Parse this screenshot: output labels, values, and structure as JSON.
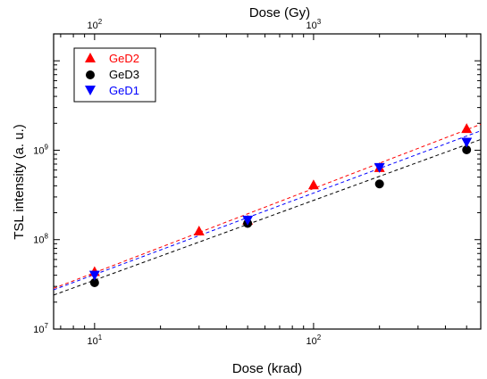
{
  "chart_data": {
    "type": "scatter",
    "x_scale": "log",
    "y_scale": "log",
    "xlabel": "Dose (krad)",
    "ylabel": "TSL intensity (a. u.)",
    "x2label": "Dose (Gy)",
    "xlim": [
      6.5,
      580
    ],
    "ylim": [
      10000000,
      20000000000
    ],
    "x2_factor": 10,
    "x_ticks": [
      {
        "value": 10,
        "base": "10",
        "exp": "1"
      },
      {
        "value": 100,
        "base": "10",
        "exp": "2"
      }
    ],
    "x2_ticks": [
      {
        "value": 100,
        "base": "10",
        "exp": "2"
      },
      {
        "value": 1000,
        "base": "10",
        "exp": "3"
      }
    ],
    "y_ticks": [
      {
        "value": 10000000,
        "base": "10",
        "exp": "7"
      },
      {
        "value": 100000000,
        "base": "10",
        "exp": "8"
      },
      {
        "value": 1000000000,
        "base": "10",
        "exp": "9"
      }
    ],
    "legend_position": "top-left",
    "series": [
      {
        "name": "GeD2",
        "color": "#ff0000",
        "marker": "triangle-up",
        "x": [
          10,
          30,
          50,
          100,
          200,
          500
        ],
        "y": [
          44000000,
          125000000,
          165000000,
          410000000,
          640000000,
          1750000000
        ],
        "fit": {
          "x": [
            6.5,
            580
          ],
          "y": [
            28500000,
            1950000000
          ]
        }
      },
      {
        "name": "GeD3",
        "color": "#000000",
        "marker": "circle",
        "x": [
          10,
          50,
          200,
          500
        ],
        "y": [
          33000000,
          152000000,
          420000000,
          1010000000
        ],
        "fit": {
          "x": [
            6.5,
            580
          ],
          "y": [
            24000000,
            1320000000
          ]
        }
      },
      {
        "name": "GeD1",
        "color": "#0000ff",
        "marker": "triangle-down",
        "x": [
          10,
          50,
          200,
          500
        ],
        "y": [
          40000000,
          165000000,
          640000000,
          1230000000
        ],
        "fit": {
          "x": [
            6.5,
            580
          ],
          "y": [
            27500000,
            1650000000
          ]
        }
      }
    ]
  }
}
